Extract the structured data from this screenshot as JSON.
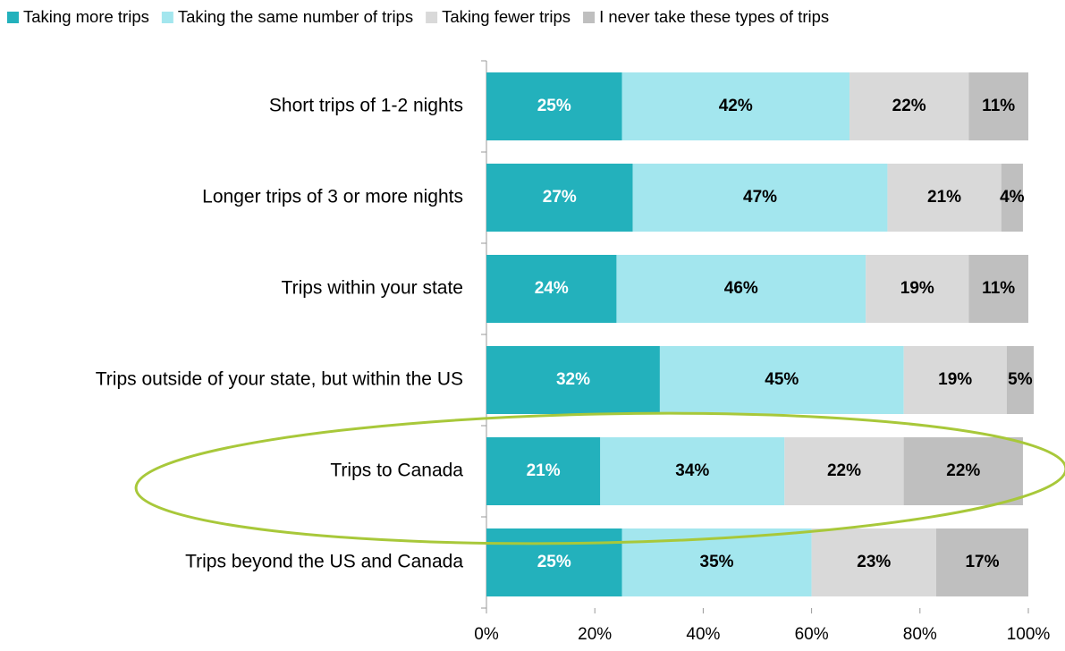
{
  "chart_data": {
    "type": "bar",
    "orientation": "horizontal",
    "stacked": true,
    "categories": [
      "Short trips of 1-2 nights",
      "Longer trips of 3 or more nights",
      "Trips within your state",
      "Trips outside of your state, but within the US",
      "Trips to Canada",
      "Trips beyond the US and Canada"
    ],
    "series": [
      {
        "name": "Taking more trips",
        "color": "#23b1bc",
        "values": [
          25,
          27,
          24,
          32,
          21,
          25
        ],
        "value_labels": [
          "25%",
          "27%",
          "24%",
          "32%",
          "21%",
          "25%"
        ]
      },
      {
        "name": "Taking the same number of trips",
        "color": "#a3e6ee",
        "values": [
          42,
          47,
          46,
          45,
          34,
          35
        ],
        "value_labels": [
          "42%",
          "47%",
          "46%",
          "45%",
          "34%",
          "35%"
        ]
      },
      {
        "name": "Taking fewer trips",
        "color": "#d9d9d9",
        "values": [
          22,
          21,
          19,
          19,
          22,
          23
        ],
        "value_labels": [
          "22%",
          "21%",
          "19%",
          "19%",
          "22%",
          "23%"
        ]
      },
      {
        "name": "I never take these types of trips",
        "color": "#bfbfbf",
        "values": [
          11,
          4,
          11,
          5,
          22,
          17
        ],
        "value_labels": [
          "11%",
          "4%",
          "11%",
          "5%",
          "22%",
          "17%"
        ]
      }
    ],
    "xlim": [
      0,
      100
    ],
    "xticks": [
      {
        "value": 0,
        "label": "0%"
      },
      {
        "value": 20,
        "label": "20%"
      },
      {
        "value": 40,
        "label": "40%"
      },
      {
        "value": 60,
        "label": "60%"
      },
      {
        "value": 80,
        "label": "80%"
      },
      {
        "value": 100,
        "label": "100%"
      }
    ],
    "grid": false,
    "legend": "top"
  }
}
